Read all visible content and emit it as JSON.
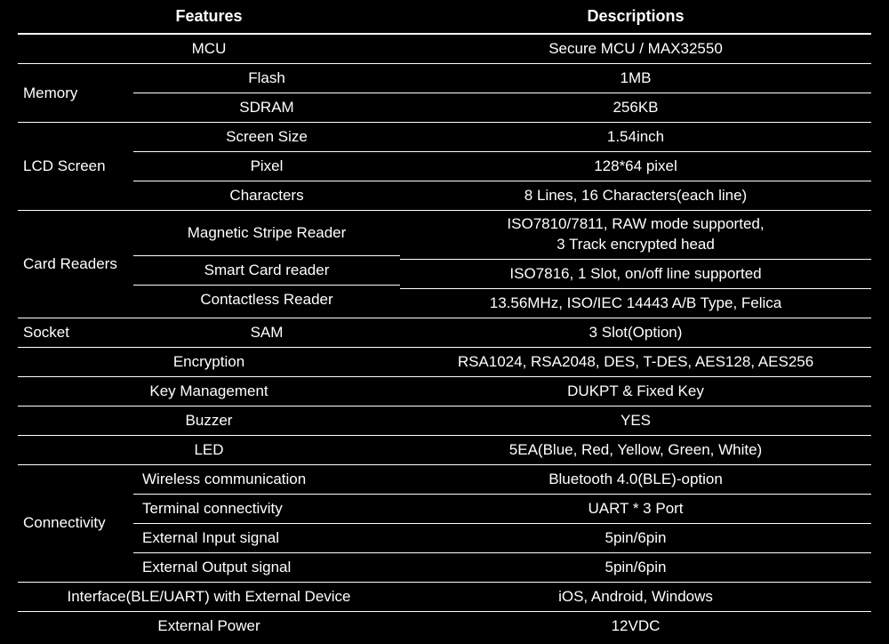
{
  "header": {
    "features": "Features",
    "descriptions": "Descriptions"
  },
  "mcu": {
    "label": "MCU",
    "value": "Secure MCU / MAX32550"
  },
  "memory": {
    "label": "Memory",
    "rows": [
      {
        "sub": "Flash",
        "val": "1MB"
      },
      {
        "sub": "SDRAM",
        "val": "256KB"
      }
    ]
  },
  "lcd": {
    "label": "LCD Screen",
    "rows": [
      {
        "sub": "Screen Size",
        "val": "1.54inch"
      },
      {
        "sub": "Pixel",
        "val": "128*64 pixel"
      },
      {
        "sub": "Characters",
        "val": "8 Lines, 16 Characters(each line)"
      }
    ]
  },
  "card": {
    "label": "Card Readers",
    "rows": [
      {
        "sub": "Magnetic Stripe Reader",
        "val": "ISO7810/7811, RAW mode supported,\n3 Track encrypted head"
      },
      {
        "sub": "Smart Card reader",
        "val": "ISO7816, 1 Slot, on/off line supported"
      },
      {
        "sub": "Contactless Reader",
        "val": "13.56MHz, ISO/IEC 14443 A/B Type, Felica"
      }
    ]
  },
  "socket": {
    "label": "Socket",
    "sub": "SAM",
    "val": "3 Slot(Option)"
  },
  "encryption": {
    "label": "Encryption",
    "val": "RSA1024, RSA2048, DES, T-DES, AES128, AES256"
  },
  "keymgmt": {
    "label": "Key Management",
    "val": "DUKPT & Fixed Key"
  },
  "buzzer": {
    "label": "Buzzer",
    "val": "YES"
  },
  "led": {
    "label": "LED",
    "val": "5EA(Blue, Red, Yellow, Green, White)"
  },
  "connectivity": {
    "label": "Connectivity",
    "rows": [
      {
        "sub": "Wireless communication",
        "val": "Bluetooth 4.0(BLE)-option"
      },
      {
        "sub": "Terminal connectivity",
        "val": "UART * 3 Port"
      },
      {
        "sub": "External Input signal",
        "val": "5pin/6pin"
      },
      {
        "sub": "External Output signal",
        "val": "5pin/6pin"
      }
    ]
  },
  "interface": {
    "label": "Interface(BLE/UART) with External Device",
    "val": "iOS, Android, Windows"
  },
  "power": {
    "label": "External Power",
    "val": "12VDC"
  }
}
